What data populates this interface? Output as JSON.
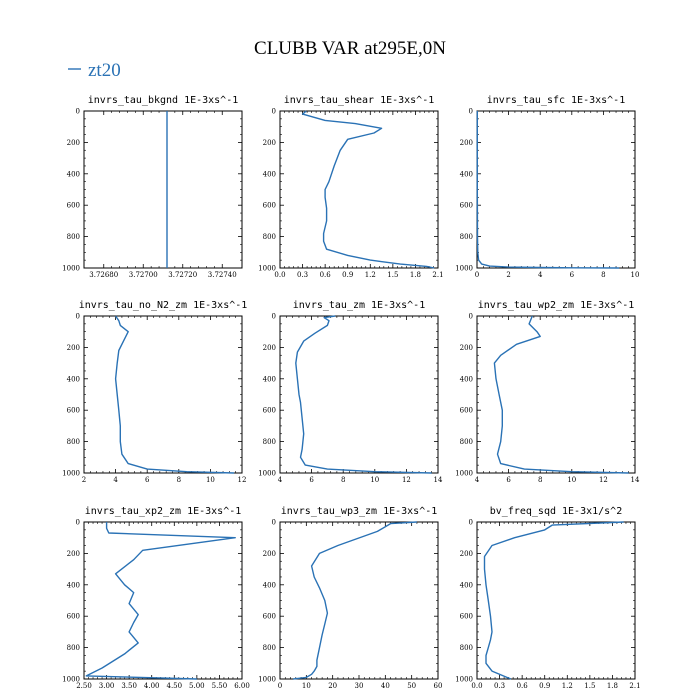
{
  "figure": {
    "title": "CLUBB VAR at295E,0N",
    "legend": [
      {
        "label": "zt20",
        "color": "#2a72b5"
      }
    ]
  },
  "chart_data": [
    {
      "type": "line",
      "title": "invrs_tau_bkgnd   1E-3xs^-1",
      "xlim": [
        3.7267,
        3.7275
      ],
      "xticks": [
        3.7268,
        3.727,
        3.7272,
        3.7274
      ],
      "xtick_labels": [
        "3.72680",
        "3.72700",
        "3.72720",
        "3.72740"
      ],
      "ylim": [
        0,
        1000
      ],
      "yticks": [
        0,
        200,
        400,
        600,
        800,
        1000
      ],
      "x": [
        3.72712,
        3.72712,
        3.72712,
        3.72712,
        3.72712,
        3.72712,
        3.72712,
        3.72712,
        3.72712,
        3.72712
      ],
      "y": [
        0,
        100,
        200,
        300,
        400,
        500,
        600,
        700,
        800,
        1000
      ]
    },
    {
      "type": "line",
      "title": "invrs_tau_shear   1E-3xs^-1",
      "xlim": [
        0,
        2.1
      ],
      "xticks": [
        0,
        0.3,
        0.6,
        0.9,
        1.2,
        1.5,
        1.8,
        2.1
      ],
      "xtick_labels": [
        "0.0",
        "0.3",
        "0.6",
        "0.9",
        "1.2",
        "1.5",
        "1.8",
        "2.1"
      ],
      "ylim": [
        0,
        1000
      ],
      "yticks": [
        0,
        200,
        400,
        600,
        800,
        1000
      ],
      "x": [
        0.35,
        0.3,
        0.6,
        1.0,
        1.35,
        1.25,
        0.9,
        0.8,
        0.72,
        0.65,
        0.6,
        0.6,
        0.62,
        0.62,
        0.58,
        0.58,
        0.62,
        0.9,
        1.2,
        1.6,
        1.95,
        2.05
      ],
      "y": [
        0,
        20,
        60,
        80,
        110,
        140,
        180,
        250,
        350,
        450,
        500,
        550,
        620,
        700,
        780,
        830,
        880,
        920,
        950,
        975,
        990,
        1000
      ]
    },
    {
      "type": "line",
      "title": "invrs_tau_sfc   1E-3xs^-1",
      "xlim": [
        0,
        10
      ],
      "xticks": [
        0,
        2,
        4,
        6,
        8,
        10
      ],
      "xtick_labels": [
        "0",
        "2",
        "4",
        "6",
        "8",
        "10"
      ],
      "ylim": [
        0,
        1000
      ],
      "yticks": [
        0,
        200,
        400,
        600,
        800,
        1000
      ],
      "x": [
        0.02,
        0.02,
        0.03,
        0.05,
        0.1,
        0.3,
        0.8,
        2,
        4,
        6,
        9
      ],
      "y": [
        0,
        500,
        800,
        900,
        950,
        975,
        988,
        994,
        997,
        999,
        1000
      ]
    },
    {
      "type": "line",
      "title": "invrs_tau_no_N2_zm   1E-3xs^-1",
      "xlim": [
        2,
        12
      ],
      "xticks": [
        2,
        4,
        6,
        8,
        10,
        12
      ],
      "xtick_labels": [
        "2",
        "4",
        "6",
        "8",
        "10",
        "12"
      ],
      "ylim": [
        0,
        1000
      ],
      "yticks": [
        0,
        200,
        400,
        600,
        800,
        1000
      ],
      "x": [
        4.0,
        4.2,
        4.3,
        4.8,
        4.5,
        4.2,
        4.1,
        4.0,
        4.1,
        4.2,
        4.3,
        4.3,
        4.4,
        4.8,
        6.0,
        8.5,
        11.5
      ],
      "y": [
        0,
        30,
        60,
        100,
        160,
        220,
        300,
        400,
        500,
        600,
        700,
        800,
        880,
        940,
        975,
        992,
        1000
      ]
    },
    {
      "type": "line",
      "title": "invrs_tau_zm   1E-3xs^-1",
      "xlim": [
        4,
        14
      ],
      "xticks": [
        4,
        6,
        8,
        10,
        12,
        14
      ],
      "xtick_labels": [
        "4",
        "6",
        "8",
        "10",
        "12",
        "14"
      ],
      "ylim": [
        0,
        1000
      ],
      "yticks": [
        0,
        200,
        400,
        600,
        800,
        1000
      ],
      "x": [
        7.5,
        6.8,
        7.1,
        7.0,
        6.2,
        5.5,
        5.1,
        5.0,
        5.1,
        5.2,
        5.3,
        5.4,
        5.5,
        5.4,
        5.3,
        5.6,
        7.0,
        10.0,
        13.6
      ],
      "y": [
        0,
        10,
        30,
        60,
        110,
        160,
        230,
        300,
        400,
        500,
        550,
        650,
        750,
        850,
        900,
        950,
        975,
        992,
        1000
      ]
    },
    {
      "type": "line",
      "title": "invrs_tau_wp2_zm   1E-3xs^-1",
      "xlim": [
        4,
        14
      ],
      "xticks": [
        4,
        6,
        8,
        10,
        12,
        14
      ],
      "xtick_labels": [
        "4",
        "6",
        "8",
        "10",
        "12",
        "14"
      ],
      "ylim": [
        0,
        1000
      ],
      "yticks": [
        0,
        200,
        400,
        600,
        800,
        1000
      ],
      "x": [
        7.5,
        7.3,
        7.8,
        8.0,
        6.5,
        5.5,
        5.1,
        5.2,
        5.4,
        5.6,
        5.6,
        5.5,
        5.3,
        5.5,
        7.0,
        10.0,
        13.6
      ],
      "y": [
        0,
        50,
        100,
        130,
        180,
        250,
        300,
        400,
        500,
        600,
        700,
        800,
        880,
        940,
        975,
        992,
        1000
      ]
    },
    {
      "type": "line",
      "title": "invrs_tau_xp2_zm   1E-3xs^-1",
      "xlim": [
        2.5,
        6.0
      ],
      "xticks": [
        2.5,
        3.0,
        3.5,
        4.0,
        4.5,
        5.0,
        5.5,
        6.0
      ],
      "xtick_labels": [
        "2.50",
        "3.00",
        "3.50",
        "4.00",
        "4.50",
        "5.00",
        "5.50",
        "6.00"
      ],
      "ylim": [
        0,
        1000
      ],
      "yticks": [
        0,
        200,
        400,
        600,
        800,
        1000
      ],
      "x": [
        3.0,
        3.0,
        3.05,
        5.85,
        3.8,
        3.6,
        3.2,
        3.4,
        3.6,
        3.5,
        3.7,
        3.6,
        3.5,
        3.7,
        3.4,
        2.9,
        2.55,
        5.0
      ],
      "y": [
        0,
        40,
        70,
        100,
        180,
        240,
        330,
        400,
        450,
        520,
        590,
        640,
        700,
        770,
        840,
        930,
        980,
        1000
      ]
    },
    {
      "type": "line",
      "title": "invrs_tau_wp3_zm   1E-3xs^-1",
      "xlim": [
        0,
        60
      ],
      "xticks": [
        0,
        10,
        20,
        30,
        40,
        50,
        60
      ],
      "xtick_labels": [
        "0",
        "10",
        "20",
        "30",
        "40",
        "50",
        "60"
      ],
      "ylim": [
        0,
        1000
      ],
      "yticks": [
        0,
        200,
        400,
        600,
        800,
        1000
      ],
      "x": [
        52,
        42,
        37,
        22,
        15,
        12,
        13,
        15,
        17,
        18,
        17,
        16,
        15,
        14,
        14,
        13,
        12,
        10,
        6,
        5
      ],
      "y": [
        0,
        10,
        60,
        150,
        200,
        280,
        350,
        420,
        500,
        580,
        650,
        720,
        800,
        880,
        920,
        950,
        970,
        990,
        998,
        1000
      ]
    },
    {
      "type": "line",
      "title": "bv_freq_sqd   1E-3x1/s^2",
      "xlim": [
        0,
        2.1
      ],
      "xticks": [
        0,
        0.3,
        0.6,
        0.9,
        1.2,
        1.5,
        1.8,
        2.1
      ],
      "xtick_labels": [
        "0.0",
        "0.3",
        "0.6",
        "0.9",
        "1.2",
        "1.5",
        "1.8",
        "2.1"
      ],
      "ylim": [
        0,
        1000
      ],
      "yticks": [
        0,
        200,
        400,
        600,
        800,
        1000
      ],
      "x": [
        1.95,
        1.0,
        0.9,
        0.5,
        0.2,
        0.1,
        0.1,
        0.12,
        0.15,
        0.18,
        0.2,
        0.18,
        0.15,
        0.12,
        0.12,
        0.2,
        0.45
      ],
      "y": [
        0,
        20,
        50,
        100,
        150,
        220,
        300,
        400,
        500,
        600,
        700,
        750,
        800,
        850,
        900,
        950,
        1000
      ]
    }
  ]
}
